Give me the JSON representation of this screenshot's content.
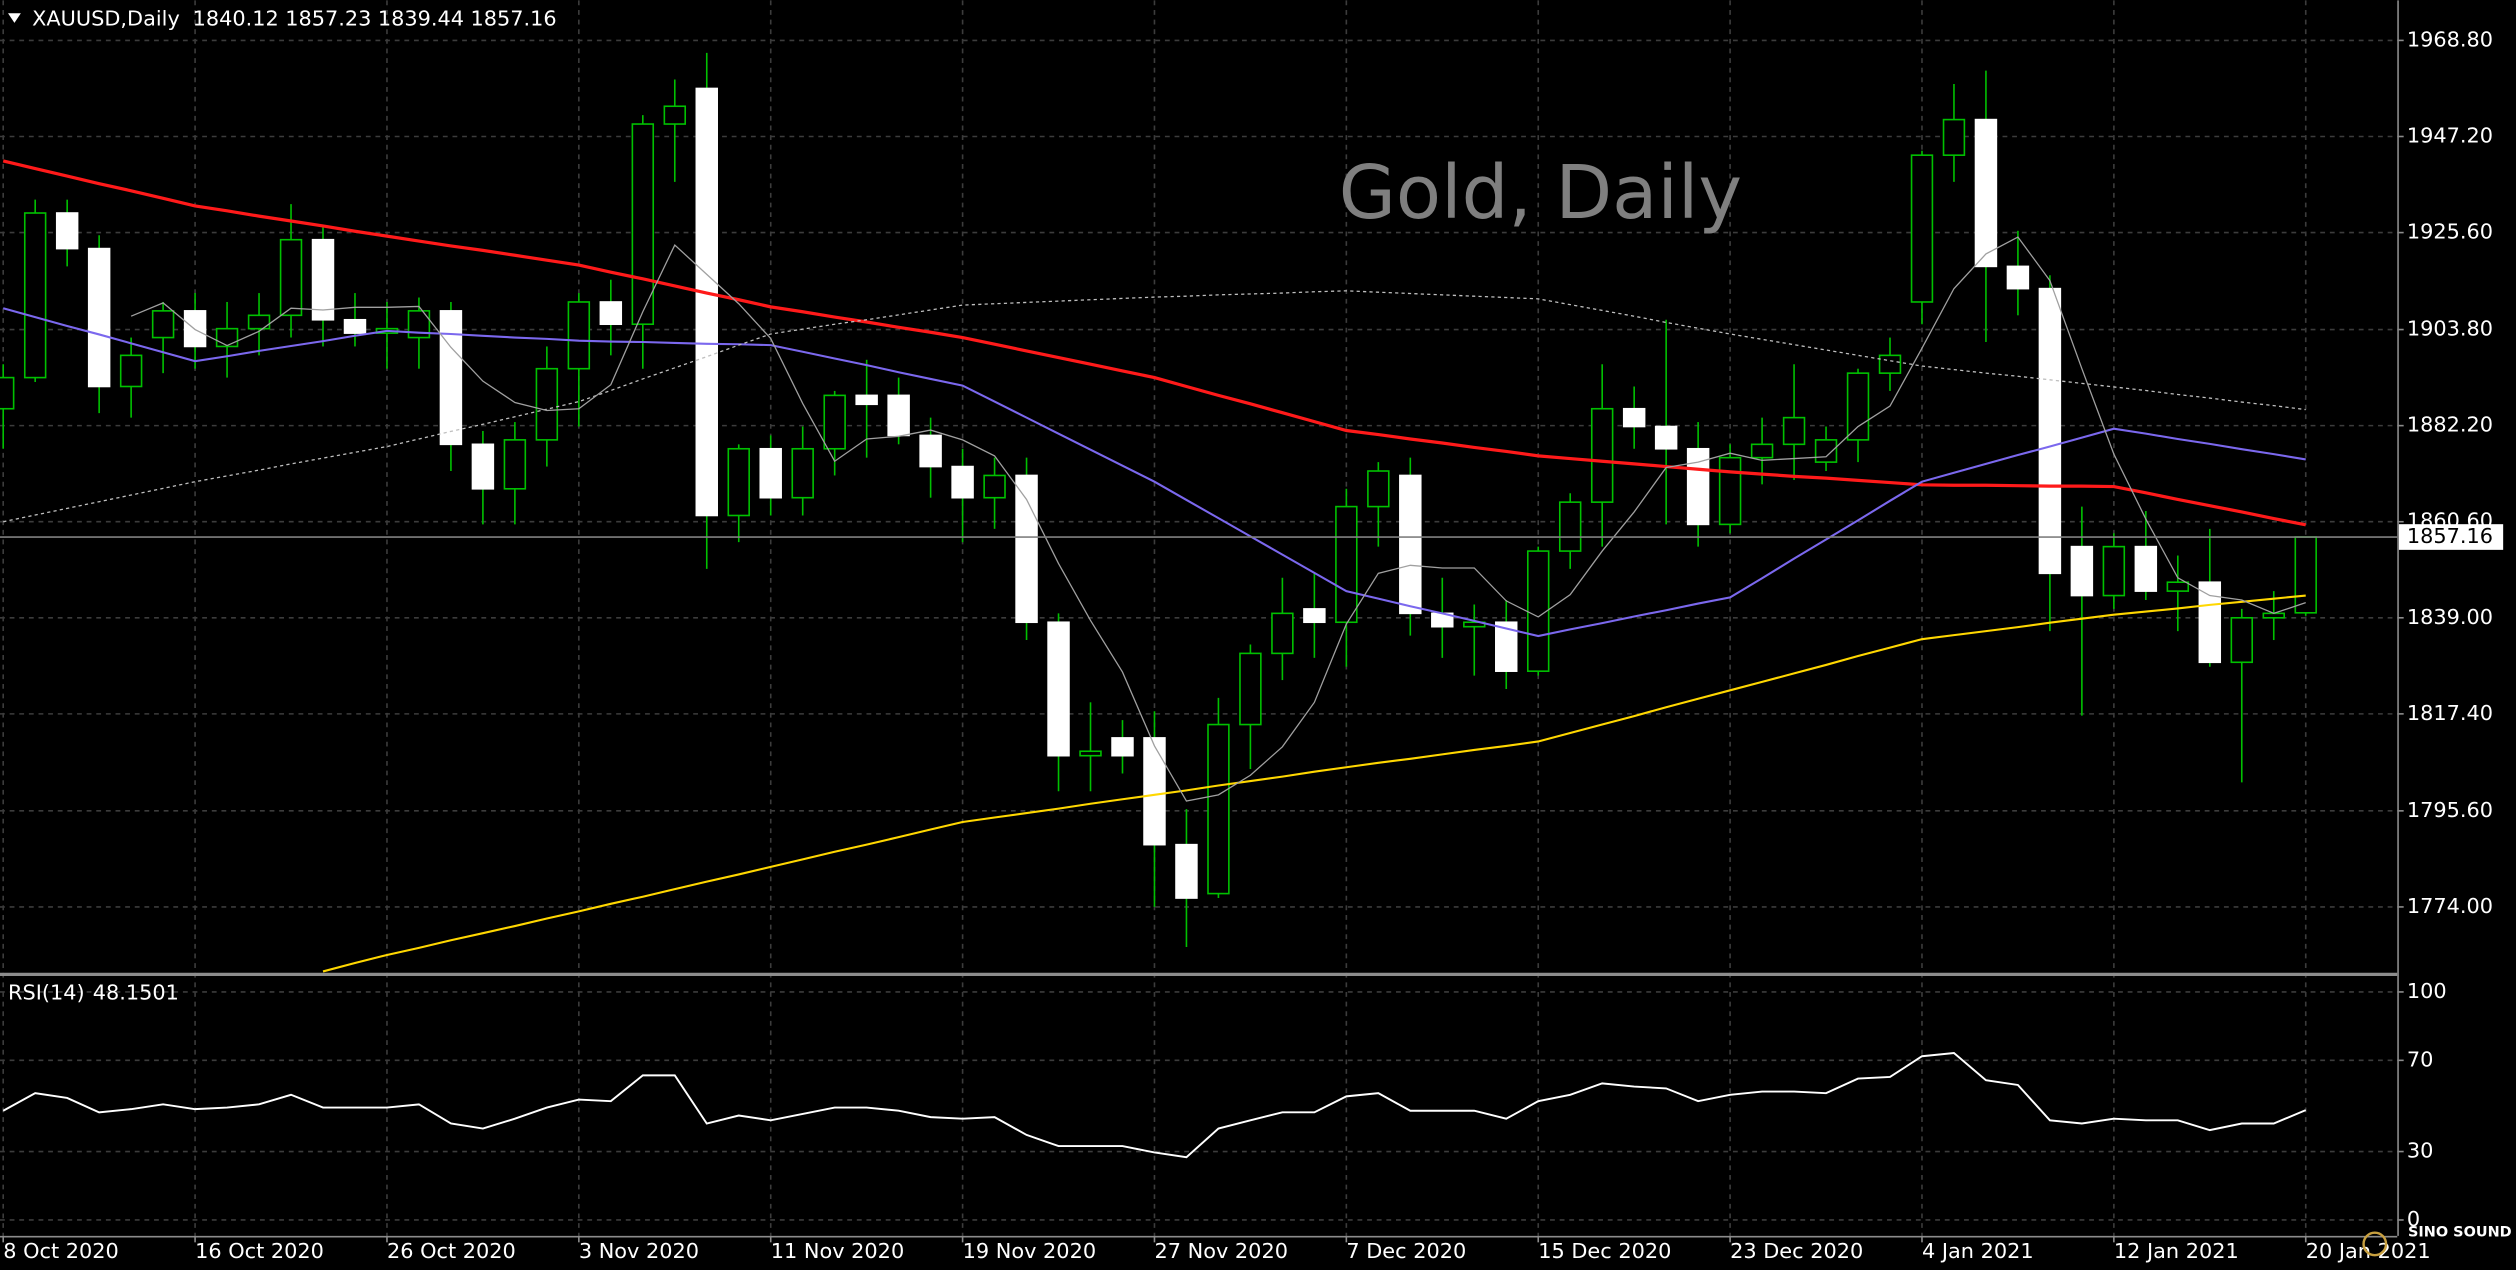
{
  "chart_data": {
    "type": "candlestick",
    "symbol": "XAUUSD,Daily",
    "watermark": "Gold, Daily",
    "logo": "SINO SOUND",
    "up_color": "#000000",
    "down_color": "#ffffff",
    "wick_color": "#00c000",
    "categories": [
      "8 Oct 2020",
      null,
      null,
      null,
      null,
      null,
      "16 Oct 2020",
      null,
      null,
      null,
      null,
      null,
      "26 Oct 2020",
      null,
      null,
      null,
      null,
      null,
      "3 Nov 2020",
      null,
      null,
      null,
      null,
      null,
      "11 Nov 2020",
      null,
      null,
      null,
      null,
      null,
      "19 Nov 2020",
      null,
      null,
      null,
      null,
      null,
      "27 Nov 2020",
      null,
      null,
      null,
      null,
      null,
      "7 Dec 2020",
      null,
      null,
      null,
      null,
      null,
      "15 Dec 2020",
      null,
      null,
      null,
      null,
      null,
      "23 Dec 2020",
      null,
      null,
      null,
      null,
      null,
      "4 Jan 2021",
      null,
      null,
      null,
      null,
      null,
      "12 Jan 2021",
      null,
      null,
      null,
      null,
      null,
      "20 Jan 2021"
    ],
    "open": [
      1886,
      1893,
      1930,
      1922,
      1891,
      1902,
      1908,
      1900,
      1904,
      1907,
      1924,
      1906,
      1903,
      1902,
      1908,
      1878,
      1868,
      1879,
      1895,
      1910,
      1905,
      1950,
      1958,
      1862,
      1877,
      1866,
      1877,
      1889,
      1889,
      1880,
      1873,
      1866,
      1871,
      1838,
      1808,
      1812,
      1812,
      1788,
      1777,
      1815,
      1831,
      1841,
      1838,
      1864,
      1871,
      1840,
      1837,
      1838,
      1827,
      1854,
      1865,
      1886,
      1882,
      1877,
      1860,
      1875,
      1878,
      1874,
      1879,
      1894,
      1910,
      1943,
      1951,
      1918,
      1913,
      1855,
      1844,
      1855,
      1845,
      1847,
      1829,
      1839,
      1840.12
    ],
    "high": [
      1896,
      1933,
      1933,
      1925,
      1902,
      1910,
      1912,
      1910,
      1912,
      1932,
      1927,
      1912,
      1910,
      1911,
      1910,
      1881,
      1883,
      1900,
      1912,
      1915,
      1952,
      1960,
      1966,
      1878,
      1880,
      1882,
      1890,
      1897,
      1893,
      1884,
      1877,
      1875,
      1875,
      1840,
      1820,
      1816,
      1818,
      1796,
      1821,
      1833,
      1848,
      1849,
      1868,
      1874,
      1875,
      1848,
      1842,
      1843,
      1855,
      1867,
      1896,
      1891,
      1906,
      1883,
      1878,
      1884,
      1896,
      1882,
      1895,
      1902,
      1944,
      1959,
      1962,
      1926,
      1916,
      1864,
      1858,
      1863,
      1853,
      1859,
      1841,
      1845,
      1857.23
    ],
    "low": [
      1877,
      1892,
      1918,
      1885,
      1884,
      1894,
      1895,
      1893,
      1898,
      1902,
      1900,
      1900,
      1895,
      1895,
      1872,
      1860,
      1860,
      1873,
      1882,
      1898,
      1895,
      1937,
      1850,
      1856,
      1862,
      1862,
      1871,
      1875,
      1878,
      1866,
      1856,
      1859,
      1834,
      1800,
      1800,
      1804,
      1774,
      1765,
      1776,
      1805,
      1825,
      1830,
      1828,
      1855,
      1835,
      1830,
      1826,
      1823,
      1826,
      1850,
      1855,
      1877,
      1860,
      1855,
      1858,
      1869,
      1870,
      1872,
      1874,
      1890,
      1905,
      1937,
      1901,
      1907,
      1836,
      1817,
      1841,
      1843,
      1836,
      1828,
      1802,
      1834,
      1839.44
    ],
    "close": [
      1893,
      1930,
      1922,
      1891,
      1898,
      1908,
      1900,
      1904,
      1907,
      1924,
      1906,
      1903,
      1904,
      1908,
      1878,
      1868,
      1879,
      1895,
      1910,
      1905,
      1950,
      1954,
      1862,
      1877,
      1866,
      1877,
      1889,
      1887,
      1880,
      1873,
      1866,
      1871,
      1838,
      1808,
      1809,
      1808,
      1788,
      1776,
      1815,
      1831,
      1840,
      1838,
      1864,
      1872,
      1840,
      1837,
      1838,
      1827,
      1854,
      1865,
      1886,
      1882,
      1877,
      1860,
      1875,
      1878,
      1884,
      1879,
      1894,
      1898,
      1943,
      1951,
      1918,
      1913,
      1849,
      1844,
      1855,
      1845,
      1847,
      1829,
      1839,
      1840,
      1857.16
    ],
    "lines": [
      {
        "color": "#ff1a1a",
        "width": 2,
        "values": [
          1941.7,
          1940.0,
          1938.3,
          1936.6,
          1935.0,
          1933.3,
          1931.6,
          1930.5,
          1929.3,
          1928.2,
          1927.1,
          1925.9,
          1924.8,
          1923.7,
          1922.6,
          1921.6,
          1920.5,
          1919.4,
          1918.3,
          1916.7,
          1915.2,
          1913.6,
          1912.0,
          1910.5,
          1908.9,
          1907.8,
          1906.6,
          1905.5,
          1904.3,
          1903.2,
          1902,
          1900.5,
          1899,
          1897.5,
          1896,
          1894.5,
          1893,
          1891,
          1889,
          1887.1,
          1885.1,
          1883.1,
          1881.1,
          1880.2,
          1879.2,
          1878.3,
          1877.3,
          1876.4,
          1875.4,
          1874.8,
          1874.2,
          1873.6,
          1873,
          1872.4,
          1871.8,
          1871.3,
          1870.8,
          1870.4,
          1869.9,
          1869.4,
          1868.9,
          1868.8,
          1868.8,
          1868.7,
          1868.6,
          1868.6,
          1868.5,
          1867.1,
          1865.6,
          1864.2,
          1862.8,
          1861.3,
          1859.9
        ]
      },
      {
        "color": "#7b68ee",
        "width": 1.3,
        "values": [
          1908.6,
          1906.6,
          1904.6,
          1902.7,
          1900.7,
          1898.7,
          1896.7,
          1897.8,
          1899,
          1900.1,
          1901.2,
          1902.4,
          1903.5,
          1903.1,
          1902.8,
          1902.4,
          1902,
          1901.7,
          1901.3,
          1901.1,
          1901,
          1900.8,
          1900.6,
          1900.5,
          1900.3,
          1898.8,
          1897.3,
          1895.8,
          1894.2,
          1892.7,
          1891.2,
          1887.6,
          1884,
          1880.4,
          1876.8,
          1873.2,
          1869.6,
          1865.5,
          1861.4,
          1857.3,
          1853.2,
          1849.1,
          1845,
          1843.3,
          1841.6,
          1840,
          1838.3,
          1836.6,
          1834.9,
          1836.4,
          1837.8,
          1839.3,
          1840.7,
          1842.2,
          1843.6,
          1847.9,
          1852.3,
          1856.6,
          1860.9,
          1865.3,
          1869.6,
          1871.6,
          1873.6,
          1875.6,
          1877.5,
          1879.5,
          1881.5,
          1880.4,
          1879.2,
          1878.1,
          1876.9,
          1875.8,
          1874.6
        ]
      },
      {
        "color": "#ffd700",
        "width": 1.3,
        "values": [
          null,
          null,
          null,
          null,
          null,
          null,
          null,
          null,
          null,
          null,
          1759.5,
          1761.4,
          1763.2,
          1764.8,
          1766.5,
          1768.1,
          1769.7,
          1771.4,
          1773,
          1774.7,
          1776.3,
          1778,
          1779.7,
          1781.3,
          1783,
          1784.7,
          1786.4,
          1788,
          1789.7,
          1791.4,
          1793.1,
          1794.1,
          1795.1,
          1796.1,
          1797.2,
          1798.2,
          1799.2,
          1800.2,
          1801.3,
          1802.3,
          1803.3,
          1804.4,
          1805.4,
          1806.4,
          1807.3,
          1808.3,
          1809.3,
          1810.2,
          1811.2,
          1813.1,
          1815,
          1816.9,
          1818.9,
          1820.8,
          1822.7,
          1824.6,
          1826.5,
          1828.4,
          1830.4,
          1832.3,
          1834.2,
          1835.1,
          1836,
          1836.9,
          1837.9,
          1838.8,
          1839.7,
          1840.4,
          1841.1,
          1841.9,
          1842.6,
          1843.3,
          1844
        ]
      },
      {
        "color": "#bfbfbf",
        "width": 0.8,
        "dashed": true,
        "values": [
          1860.6,
          1862.1,
          1863.6,
          1865.1,
          1866.6,
          1868.1,
          1869.6,
          1870.9,
          1872.2,
          1873.6,
          1874.9,
          1876.2,
          1877.5,
          1879.2,
          1880.9,
          1882.5,
          1884.2,
          1885.9,
          1887.6,
          1890.1,
          1892.7,
          1895.2,
          1897.7,
          1900.3,
          1902.8,
          1903.9,
          1905,
          1906,
          1907.1,
          1908.2,
          1909.3,
          1909.6,
          1909.9,
          1910.2,
          1910.5,
          1910.8,
          1911.1,
          1911.3,
          1911.6,
          1911.8,
          1912,
          1912.3,
          1912.5,
          1912.2,
          1911.9,
          1911.6,
          1911.3,
          1911,
          1910.7,
          1909.4,
          1908.1,
          1906.8,
          1905.4,
          1904.1,
          1902.8,
          1901.6,
          1900.4,
          1899.2,
          1898,
          1896.8,
          1895.6,
          1894.8,
          1894,
          1893.3,
          1892.5,
          1891.7,
          1890.9,
          1890.1,
          1889.2,
          1888.4,
          1887.5,
          1886.7,
          1885.8
        ]
      },
      {
        "color": "#a0a0a0",
        "width": 0.8,
        "values": [
          null,
          null,
          null,
          null,
          1906.8,
          1909.8,
          1903.8,
          1900.2,
          1903.4,
          1908.6,
          1908.2,
          1908.8,
          1908.8,
          1909,
          1899.8,
          1892.2,
          1887.4,
          1885.6,
          1886,
          1891.4,
          1907.8,
          1922.8,
          1916.2,
          1909.6,
          1901.8,
          1887.2,
          1874.2,
          1879.2,
          1879.8,
          1881.2,
          1879,
          1875.4,
          1865.6,
          1851.2,
          1838.4,
          1826.8,
          1810.2,
          1797.8,
          1799.2,
          1803.6,
          1810,
          1820,
          1837.6,
          1849,
          1850.8,
          1850.2,
          1850.2,
          1842.8,
          1839.2,
          1844.2,
          1854,
          1862.8,
          1872.8,
          1874,
          1876,
          1874.4,
          1874.8,
          1875.2,
          1882,
          1886.6,
          1899.6,
          1913,
          1920.8,
          1924.6,
          1914.8,
          1895,
          1875.8,
          1861.2,
          1848,
          1844,
          1843,
          1840,
          1842.4
        ]
      }
    ],
    "ylim": [
      1759.2,
      1977.8
    ],
    "yticks": [
      {
        "value": 1968.8,
        "label": "1968.80"
      },
      {
        "value": 1947.2,
        "label": "1947.20"
      },
      {
        "value": 1925.6,
        "label": "1925.60"
      },
      {
        "value": 1903.8,
        "label": "1903.80"
      },
      {
        "value": 1882.2,
        "label": "1882.20"
      },
      {
        "value": 1860.6,
        "label": "1860.60"
      },
      {
        "value": 1839,
        "label": "1839.00"
      },
      {
        "value": 1817.4,
        "label": "1817.40"
      },
      {
        "value": 1795.6,
        "label": "1795.60"
      },
      {
        "value": 1774,
        "label": "1774.00"
      }
    ],
    "grid": true,
    "rsi": {
      "name": "RSI(14)",
      "color": "#ffffff",
      "values": [
        47.9,
        55.6,
        53.5,
        47.2,
        48.6,
        50.7,
        48.6,
        49.3,
        50.7,
        54.9,
        49.3,
        49.3,
        49.3,
        50.7,
        42.3,
        40.1,
        44.4,
        49.3,
        52.8,
        52.1,
        63.4,
        63.4,
        42.3,
        45.8,
        43.7,
        46.5,
        49.3,
        49.3,
        47.9,
        45.1,
        44.4,
        45.1,
        37.3,
        32.4,
        32.4,
        32.4,
        29.6,
        27.5,
        40.1,
        43.7,
        47.2,
        47.2,
        54.2,
        55.6,
        47.9,
        47.9,
        47.9,
        44.4,
        52.1,
        54.9,
        59.9,
        58.5,
        57.7,
        52.1,
        54.9,
        56.3,
        56.3,
        55.6,
        62,
        62.7,
        71.8,
        73.2,
        61.3,
        59.2,
        43.7,
        42.3,
        44.4,
        43.7,
        43.7,
        39.4,
        42.3,
        42.3,
        48.1501
      ],
      "ylim": [
        -7,
        107
      ],
      "yticks": [
        100,
        70,
        30,
        0
      ]
    }
  }
}
